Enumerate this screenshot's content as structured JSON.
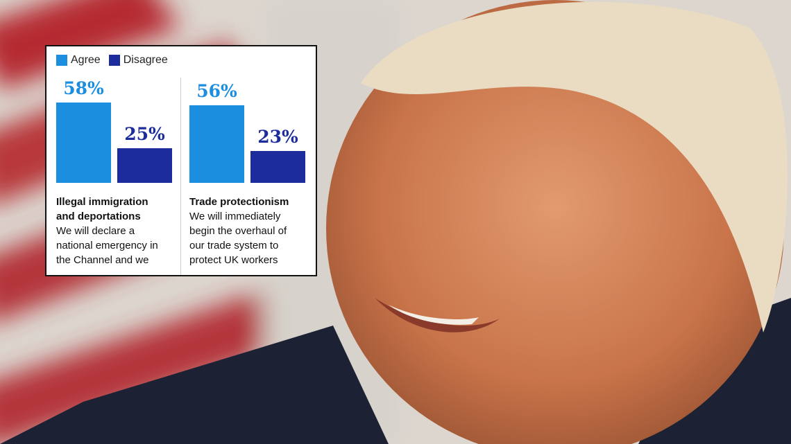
{
  "chart_data": {
    "type": "bar",
    "categories": [
      "Illegal immigration and deportations",
      "Trade protectionism"
    ],
    "descriptions": [
      "We will declare a national emergency in the Channel and we",
      "We will immediately begin the overhaul of our trade system to protect UK workers"
    ],
    "series": [
      {
        "name": "Agree",
        "color": "#1b8ee0",
        "values": [
          58,
          56
        ],
        "value_labels": [
          "58%",
          "56%"
        ]
      },
      {
        "name": "Disagree",
        "color": "#1c2c9c",
        "values": [
          25,
          23
        ],
        "value_labels": [
          "25%",
          "23%"
        ]
      }
    ],
    "legend": "top-left"
  }
}
